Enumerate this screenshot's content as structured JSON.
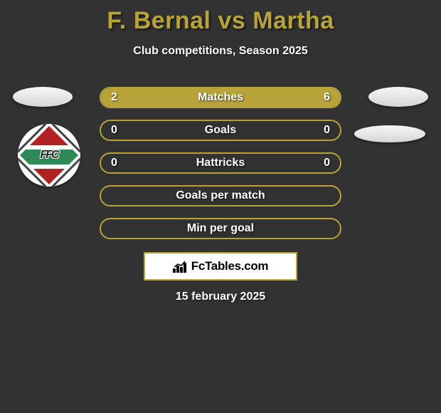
{
  "title_color": "#b8a23a",
  "text_color": "#ffffff",
  "background_color": "#323232",
  "accent_color": "#b8a23a",
  "title": "F. Bernal vs Martha",
  "subtitle": "Club competitions, Season 2025",
  "date": "15 february 2025",
  "brand": {
    "text": "FcTables.com"
  },
  "bars": [
    {
      "label": "Matches",
      "left": "2",
      "right": "6",
      "left_pct": 25,
      "right_pct": 75,
      "fill_color": "#b8a23a",
      "border_color": "#b8a23a"
    },
    {
      "label": "Goals",
      "left": "0",
      "right": "0",
      "left_pct": 0,
      "right_pct": 0,
      "fill_color": "#b8a23a",
      "border_color": "#b8a23a"
    },
    {
      "label": "Hattricks",
      "left": "0",
      "right": "0",
      "left_pct": 0,
      "right_pct": 0,
      "fill_color": "#b8a23a",
      "border_color": "#b8a23a"
    },
    {
      "label": "Goals per match",
      "left": "",
      "right": "",
      "left_pct": 0,
      "right_pct": 0,
      "fill_color": "#b8a23a",
      "border_color": "#b8a23a"
    },
    {
      "label": "Min per goal",
      "left": "",
      "right": "",
      "left_pct": 0,
      "right_pct": 0,
      "fill_color": "#b8a23a",
      "border_color": "#b8a23a"
    }
  ],
  "crest_letters": "FFC"
}
